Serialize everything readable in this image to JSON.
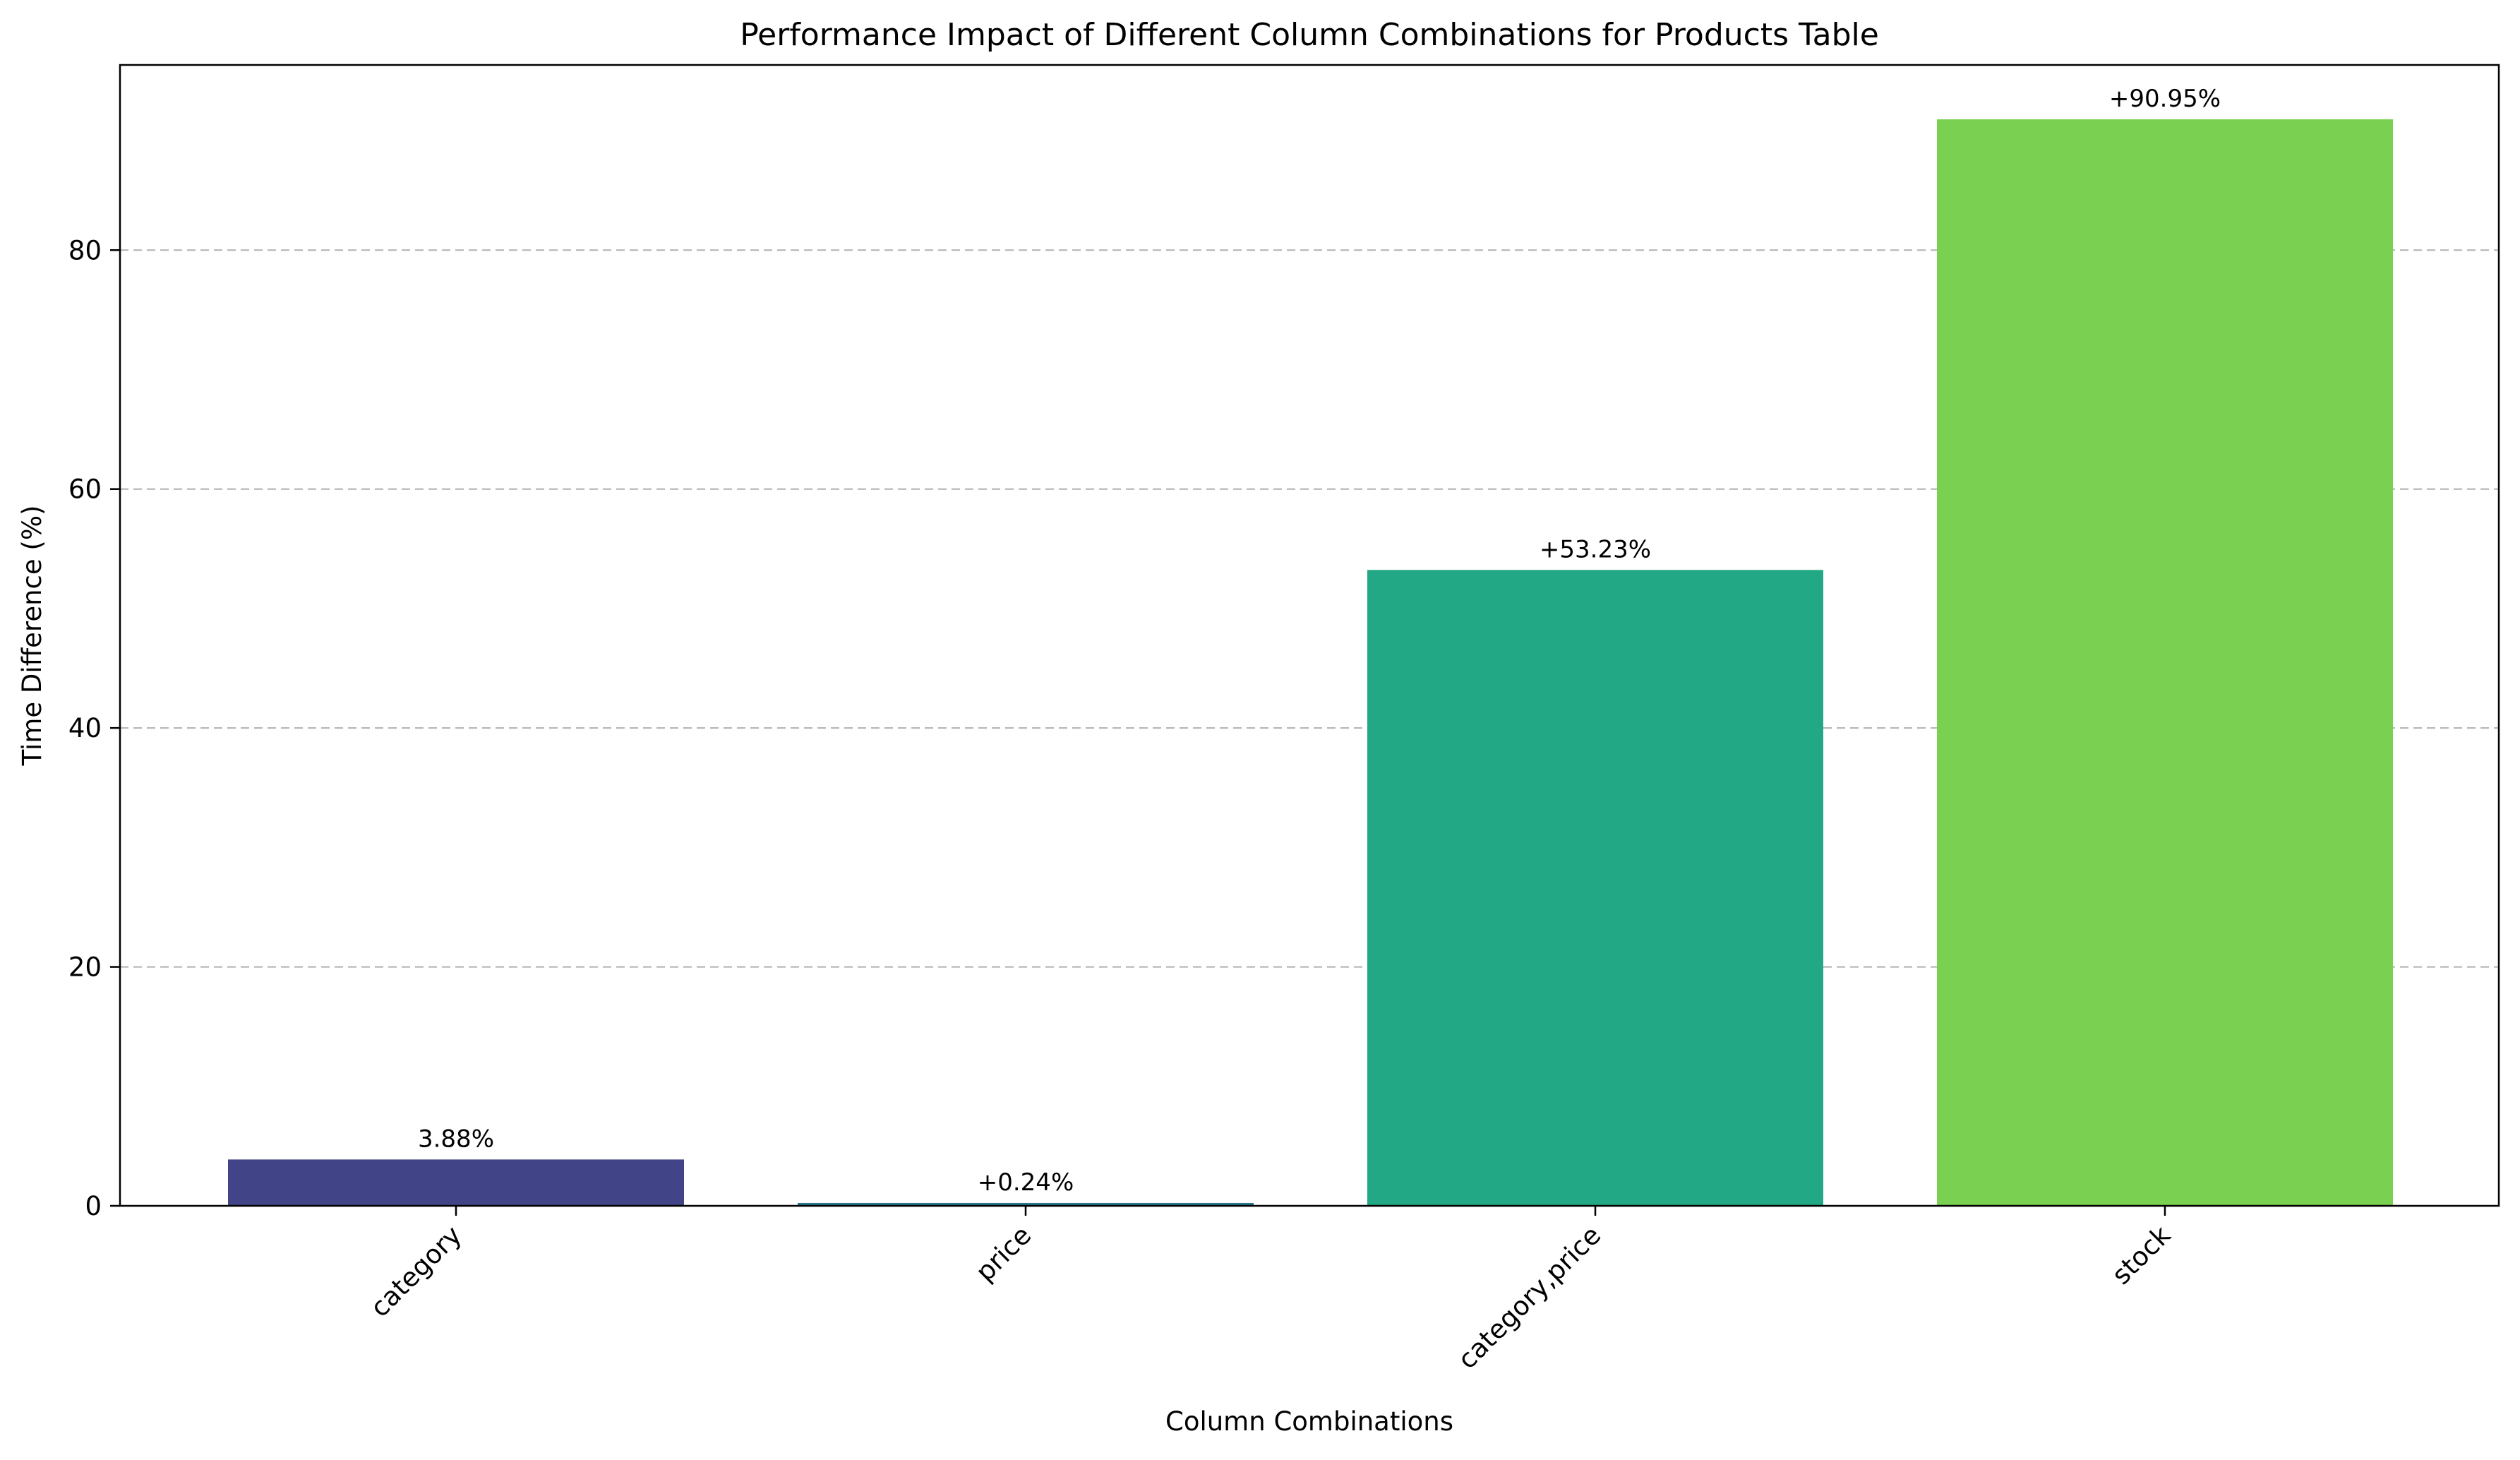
{
  "chart_data": {
    "type": "bar",
    "title": "Performance Impact of Different Column Combinations for Products Table",
    "xlabel": "Column Combinations",
    "ylabel": "Time Difference (%)",
    "categories": [
      "category",
      "price",
      "category,price",
      "stock"
    ],
    "values": [
      3.88,
      0.24,
      53.23,
      90.95
    ],
    "data_labels": [
      "3.88%",
      "+0.24%",
      "+53.23%",
      "+90.95%"
    ],
    "colors": [
      "#414487",
      "#2a788e",
      "#22a884",
      "#7ad151"
    ],
    "ylim": [
      0,
      95.5
    ],
    "yticks": [
      0,
      20,
      40,
      60,
      80
    ],
    "grid": "y-dashed",
    "legend": "none"
  }
}
